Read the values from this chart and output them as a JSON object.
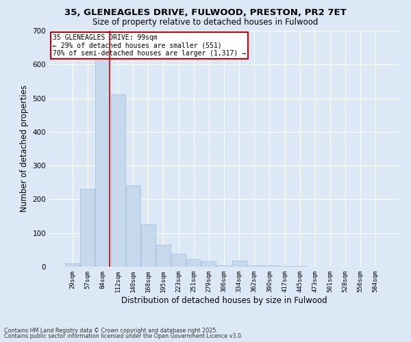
{
  "title_line1": "35, GLENEAGLES DRIVE, FULWOOD, PRESTON, PR2 7ET",
  "title_line2": "Size of property relative to detached houses in Fulwood",
  "xlabel": "Distribution of detached houses by size in Fulwood",
  "ylabel": "Number of detached properties",
  "footer_line1": "Contains HM Land Registry data © Crown copyright and database right 2025.",
  "footer_line2": "Contains public sector information licensed under the Open Government Licence v3.0.",
  "annotation_line1": "35 GLENEAGLES DRIVE: 99sqm",
  "annotation_line2": "← 29% of detached houses are smaller (551)",
  "annotation_line3": "70% of semi-detached houses are larger (1,317) →",
  "bar_color": "#c5d8ec",
  "bar_edge_color": "#a0bcd8",
  "redline_color": "#cc0000",
  "background_color": "#dce8f5",
  "annotation_box_color": "#ffffff",
  "annotation_box_edge": "#cc0000",
  "categories": [
    "29sqm",
    "57sqm",
    "84sqm",
    "112sqm",
    "140sqm",
    "168sqm",
    "195sqm",
    "223sqm",
    "251sqm",
    "279sqm",
    "306sqm",
    "334sqm",
    "362sqm",
    "390sqm",
    "417sqm",
    "445sqm",
    "473sqm",
    "501sqm",
    "528sqm",
    "556sqm",
    "584sqm"
  ],
  "values": [
    10,
    232,
    648,
    512,
    242,
    125,
    65,
    38,
    22,
    16,
    5,
    18,
    5,
    4,
    3,
    2,
    1,
    1,
    1,
    0,
    1
  ],
  "ylim": [
    0,
    700
  ],
  "yticks": [
    0,
    100,
    200,
    300,
    400,
    500,
    600,
    700
  ],
  "redline_category_index": 2,
  "figsize": [
    6.0,
    5.0
  ],
  "dpi": 100
}
